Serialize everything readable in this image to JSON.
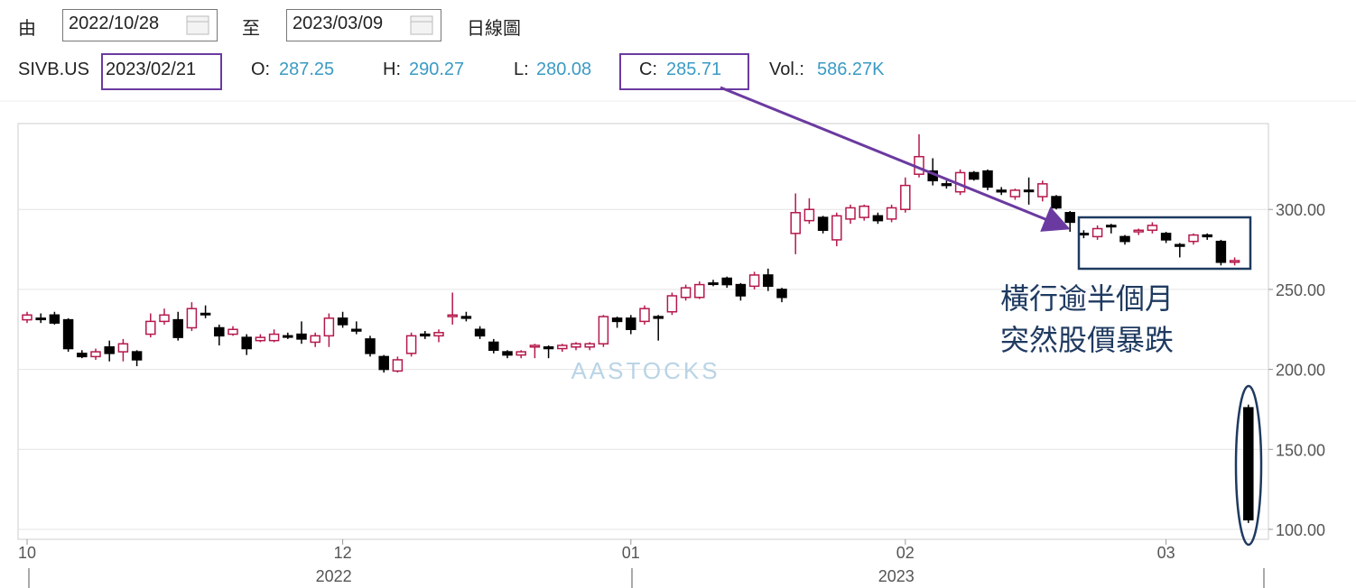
{
  "header": {
    "from_label": "由",
    "from_date": "2022/10/28",
    "to_label": "至",
    "to_date": "2023/03/09",
    "chart_kind": "日線圖",
    "symbol": "SIVB.US",
    "date": "2023/02/21",
    "open_label": "O:",
    "open": 287.25,
    "high_label": "H:",
    "high": 290.27,
    "low_label": "L:",
    "low": 280.08,
    "close_label": "C:",
    "close": 285.71,
    "volume_label": "Vol.:",
    "volume": "586.27K"
  },
  "chart_data": {
    "type": "candlestick",
    "watermark": "AASTOCKS",
    "annotation": [
      "橫行逾半個月",
      "突然股價暴跌"
    ],
    "categories": [
      "10",
      null,
      null,
      null,
      null,
      null,
      null,
      null,
      null,
      null,
      null,
      null,
      null,
      null,
      null,
      null,
      null,
      null,
      null,
      null,
      null,
      null,
      null,
      "12",
      null,
      null,
      null,
      null,
      null,
      null,
      null,
      null,
      null,
      null,
      null,
      null,
      null,
      null,
      null,
      null,
      null,
      null,
      null,
      null,
      "01",
      null,
      null,
      null,
      null,
      null,
      null,
      null,
      null,
      null,
      null,
      null,
      null,
      null,
      null,
      null,
      null,
      null,
      null,
      null,
      "02",
      null,
      null,
      null,
      null,
      null,
      null,
      null,
      null,
      null,
      null,
      null,
      null,
      null,
      null,
      null,
      null,
      null,
      null,
      "03",
      null,
      null,
      null,
      null,
      null,
      null
    ],
    "year_labels": [
      "2022",
      "2023"
    ],
    "open": [
      231,
      232,
      234,
      231,
      210,
      208,
      214,
      211,
      211,
      222,
      230,
      231,
      226,
      235,
      226,
      222,
      220,
      218,
      218,
      221,
      222,
      217,
      221,
      232,
      225,
      219,
      208,
      199,
      210,
      222,
      221,
      233,
      233,
      225,
      217,
      211,
      209,
      214,
      214,
      213,
      214,
      214,
      216,
      232,
      232,
      230,
      233,
      236,
      245,
      245,
      254,
      257,
      253,
      252,
      259,
      250,
      285,
      293,
      295,
      281,
      294,
      295,
      296,
      294,
      300,
      322,
      324,
      316,
      311,
      323,
      324,
      312,
      308,
      312,
      308,
      308,
      298,
      285,
      283,
      290,
      283,
      286,
      287,
      285,
      278,
      280,
      284,
      280,
      267,
      176
    ],
    "close": [
      234,
      232,
      229,
      213,
      208,
      211,
      210,
      216,
      206,
      230,
      234,
      220,
      238,
      235,
      221,
      225,
      213,
      220,
      222,
      221,
      219,
      221,
      232,
      228,
      224,
      210,
      200,
      206,
      221,
      221,
      223,
      234,
      232,
      221,
      212,
      209,
      211,
      215,
      213,
      215,
      216,
      216,
      233,
      230,
      225,
      238,
      232,
      246,
      251,
      253,
      254,
      253,
      246,
      259,
      252,
      245,
      298,
      300,
      287,
      296,
      301,
      302,
      293,
      301,
      315,
      333,
      318,
      315,
      323,
      319,
      314,
      311,
      312,
      312,
      316,
      301,
      292,
      285,
      288,
      290,
      280,
      287,
      290,
      281,
      277,
      284,
      283,
      267,
      268,
      106
    ],
    "high": [
      236,
      235,
      236,
      232,
      212,
      213,
      218,
      219,
      212,
      235,
      238,
      236,
      242,
      240,
      228,
      227,
      222,
      222,
      225,
      223,
      230,
      223,
      235,
      236,
      230,
      221,
      209,
      208,
      223,
      224,
      225,
      248,
      236,
      227,
      219,
      212,
      212,
      216,
      215,
      216,
      217,
      217,
      234,
      233,
      234,
      240,
      234,
      248,
      253,
      255,
      256,
      258,
      254,
      261,
      263,
      251,
      310,
      307,
      296,
      298,
      303,
      303,
      298,
      303,
      320,
      347,
      332,
      318,
      325,
      324,
      325,
      314,
      313,
      320,
      318,
      309,
      299,
      287,
      290,
      291,
      284,
      288,
      292,
      286,
      279,
      285,
      285,
      281,
      270,
      178
    ],
    "low": [
      229,
      229,
      228,
      211,
      207,
      206,
      205,
      205,
      202,
      220,
      228,
      218,
      224,
      232,
      215,
      221,
      209,
      217,
      217,
      219,
      216,
      214,
      214,
      226,
      222,
      208,
      198,
      198,
      208,
      219,
      217,
      228,
      230,
      219,
      210,
      207,
      207,
      207,
      207,
      211,
      212,
      212,
      214,
      226,
      222,
      228,
      218,
      234,
      243,
      244,
      252,
      251,
      243,
      250,
      249,
      242,
      272,
      291,
      285,
      277,
      291,
      293,
      291,
      292,
      298,
      320,
      315,
      313,
      309,
      318,
      312,
      309,
      306,
      303,
      305,
      300,
      286,
      282,
      281,
      285,
      278,
      284,
      285,
      279,
      270,
      278,
      281,
      265,
      265,
      104
    ],
    "up_color": "#b5194a",
    "down_color": "#000000",
    "ylim": [
      94,
      352
    ],
    "yticks": [
      {
        "value": 100,
        "label": "100.00"
      },
      {
        "value": 150,
        "label": "150.00"
      },
      {
        "value": 200,
        "label": "200.00"
      },
      {
        "value": 250,
        "label": "250.00"
      },
      {
        "value": 300,
        "label": "300.00"
      }
    ],
    "grid": true
  }
}
